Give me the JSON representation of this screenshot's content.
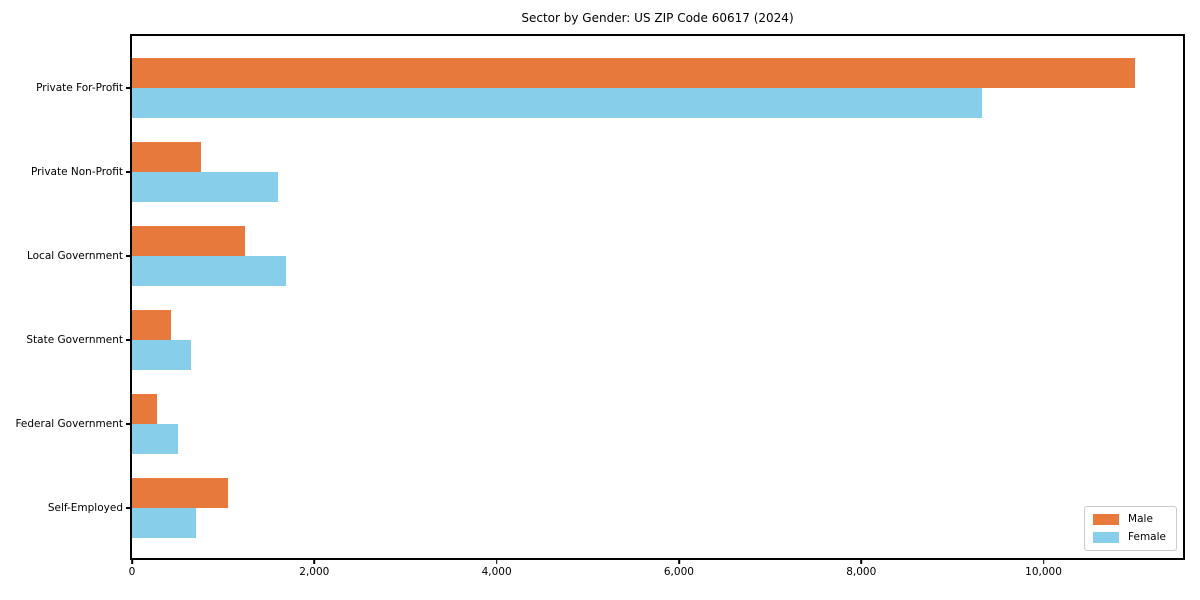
{
  "chart_data": {
    "type": "bar",
    "orientation": "horizontal",
    "title": "Sector by Gender: US ZIP Code 60617 (2024)",
    "categories": [
      "Private For-Profit",
      "Private Non-Profit",
      "Local Government",
      "State Government",
      "Federal Government",
      "Self-Employed"
    ],
    "series": [
      {
        "name": "Male",
        "color": "#e8793d",
        "values": [
          11000,
          760,
          1240,
          430,
          270,
          1050
        ]
      },
      {
        "name": "Female",
        "color": "#87ceeb",
        "values": [
          9330,
          1600,
          1690,
          650,
          500,
          700
        ]
      }
    ],
    "xlabel": "",
    "ylabel": "",
    "xlim": [
      0,
      11530
    ],
    "xticks": [
      0,
      2000,
      4000,
      6000,
      8000,
      10000
    ],
    "xtick_labels": [
      "0",
      "2,000",
      "4,000",
      "6,000",
      "8,000",
      "10,000"
    ],
    "legend_position": "lower right",
    "grid": false,
    "background_color": "#ffffff",
    "border_color": "#000000"
  }
}
